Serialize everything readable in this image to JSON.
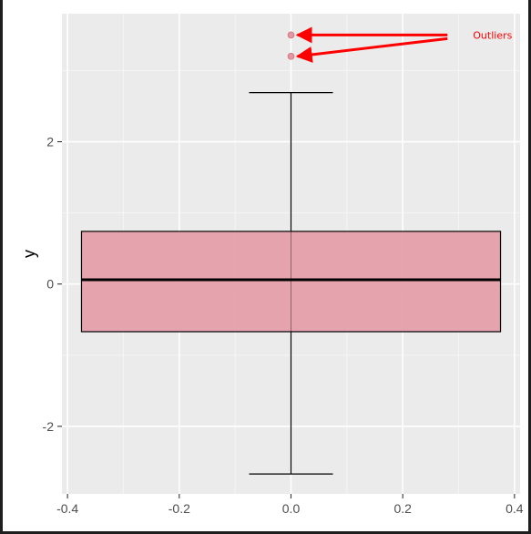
{
  "chart_data": {
    "type": "box",
    "title": "",
    "xlabel": "",
    "ylabel": "y",
    "xlim": [
      -0.41,
      0.41
    ],
    "ylim": [
      -2.95,
      3.8
    ],
    "x_ticks": [
      -0.4,
      -0.2,
      0.0,
      0.2,
      0.4
    ],
    "x_tick_labels": [
      "-0.4",
      "-0.2",
      "0.0",
      "0.2",
      "0.4"
    ],
    "y_ticks": [
      -2,
      0,
      2
    ],
    "y_tick_labels": [
      "-2",
      "0",
      "2"
    ],
    "grid": true,
    "box": {
      "x_center": 0.0,
      "x_halfwidth": 0.375,
      "cap_halfwidth": 0.075,
      "q1": -0.67,
      "median": 0.06,
      "q3": 0.74,
      "whisker_low": -2.67,
      "whisker_high": 2.69,
      "outliers": [
        3.5,
        3.2
      ]
    },
    "annotation": {
      "text": "Outliers",
      "x": 0.28,
      "y": 3.5
    },
    "colors": {
      "panel": "#ebebeb",
      "grid_major": "#ffffff",
      "grid_minor": "#f5f5f5",
      "box_fill": "#e5a0aa",
      "outlier": "#e07885",
      "annotation": "#ff0000"
    }
  }
}
